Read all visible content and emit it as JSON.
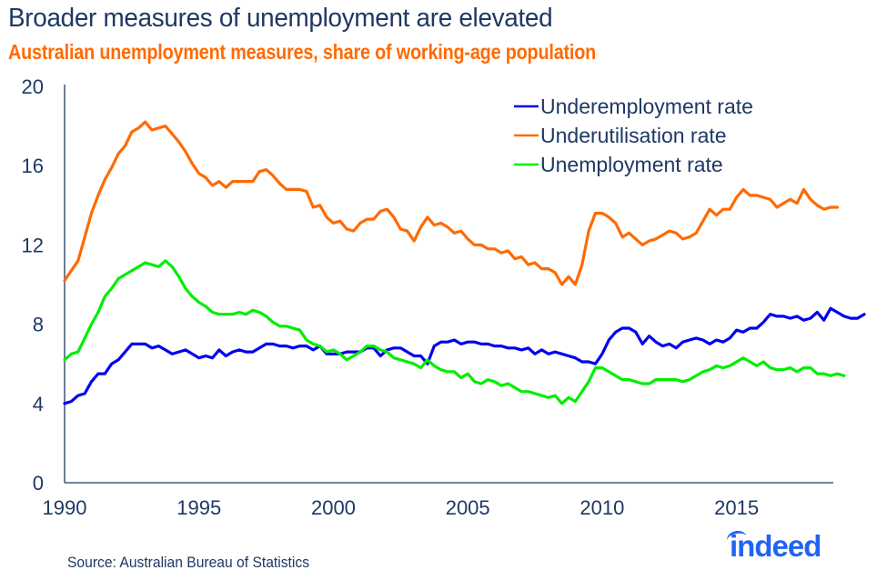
{
  "header": {
    "title": "Broader measures of unemployment are elevated",
    "subtitle": "Australian unemployment measures, share of working-age population"
  },
  "footer": {
    "source": "Source: Australian Bureau of Statistics",
    "logo_text": "indeed"
  },
  "colors": {
    "title": "#1f3864",
    "subtitle": "#ff6a00",
    "underemployment": "#0000ee",
    "underutilisation": "#ff6a00",
    "unemployment": "#00ee00",
    "axis": "#1f3864",
    "logo": "#2164f3"
  },
  "chart_data": {
    "type": "line",
    "title": "Broader measures of unemployment are elevated",
    "subtitle": "Australian unemployment measures, share of working-age population",
    "xlabel": "",
    "ylabel": "",
    "xlim": [
      1990,
      2018.6
    ],
    "ylim": [
      0,
      20
    ],
    "x_ticks": [
      1990,
      1995,
      2000,
      2005,
      2010,
      2015
    ],
    "y_ticks": [
      0,
      4,
      8,
      12,
      16,
      20
    ],
    "x_tick_labels": [
      "1990",
      "1995",
      "2000",
      "2005",
      "2010",
      "2015"
    ],
    "y_tick_labels": [
      "0",
      "4",
      "8",
      "12",
      "16",
      "20"
    ],
    "grid": false,
    "legend_position": "top-right",
    "x_start": 1990,
    "x_step": 0.25,
    "series": [
      {
        "name": "Underemployment rate",
        "color": "#0000ee",
        "values": [
          4.0,
          4.1,
          4.4,
          4.5,
          5.1,
          5.5,
          5.5,
          6.0,
          6.2,
          6.6,
          7.0,
          7.0,
          7.0,
          6.8,
          6.9,
          6.7,
          6.5,
          6.6,
          6.7,
          6.5,
          6.3,
          6.4,
          6.3,
          6.7,
          6.4,
          6.6,
          6.7,
          6.6,
          6.6,
          6.8,
          7.0,
          7.0,
          6.9,
          6.9,
          6.8,
          6.9,
          6.9,
          6.7,
          6.9,
          6.5,
          6.5,
          6.5,
          6.6,
          6.6,
          6.6,
          6.8,
          6.8,
          6.4,
          6.7,
          6.8,
          6.8,
          6.6,
          6.4,
          6.4,
          6.0,
          6.9,
          7.1,
          7.1,
          7.2,
          7.0,
          7.1,
          7.1,
          7.0,
          7.0,
          6.9,
          6.9,
          6.8,
          6.8,
          6.7,
          6.8,
          6.5,
          6.7,
          6.5,
          6.6,
          6.5,
          6.4,
          6.3,
          6.1,
          6.1,
          6.0,
          6.5,
          7.2,
          7.6,
          7.8,
          7.8,
          7.6,
          7.0,
          7.4,
          7.1,
          6.9,
          7.0,
          6.8,
          7.1,
          7.2,
          7.3,
          7.2,
          7.0,
          7.2,
          7.1,
          7.3,
          7.7,
          7.6,
          7.8,
          7.8,
          8.1,
          8.5,
          8.4,
          8.4,
          8.3,
          8.4,
          8.2,
          8.3,
          8.6,
          8.2,
          8.8,
          8.6,
          8.4,
          8.3,
          8.3,
          8.5
        ]
      },
      {
        "name": "Underutilisation rate",
        "color": "#ff6a00",
        "values": [
          10.2,
          10.7,
          11.2,
          12.4,
          13.6,
          14.5,
          15.3,
          15.9,
          16.6,
          17.0,
          17.7,
          17.9,
          18.2,
          17.8,
          17.9,
          18.0,
          17.6,
          17.2,
          16.7,
          16.1,
          15.6,
          15.4,
          15.0,
          15.2,
          14.9,
          15.2,
          15.2,
          15.2,
          15.2,
          15.7,
          15.8,
          15.5,
          15.1,
          14.8,
          14.8,
          14.8,
          14.7,
          13.9,
          14.0,
          13.4,
          13.1,
          13.2,
          12.8,
          12.7,
          13.1,
          13.3,
          13.3,
          13.7,
          13.8,
          13.4,
          12.8,
          12.7,
          12.2,
          12.9,
          13.4,
          13.0,
          13.1,
          12.9,
          12.6,
          12.7,
          12.3,
          12.0,
          12.0,
          11.8,
          11.8,
          11.6,
          11.7,
          11.3,
          11.4,
          11.0,
          11.1,
          10.8,
          10.8,
          10.6,
          10.0,
          10.4,
          10.0,
          11.0,
          12.7,
          13.6,
          13.6,
          13.4,
          13.1,
          12.4,
          12.6,
          12.3,
          12.0,
          12.2,
          12.3,
          12.5,
          12.7,
          12.6,
          12.3,
          12.4,
          12.6,
          13.2,
          13.8,
          13.5,
          13.8,
          13.8,
          14.4,
          14.8,
          14.5,
          14.5,
          14.4,
          14.3,
          13.9,
          14.1,
          14.3,
          14.1,
          14.8,
          14.3,
          14.0,
          13.8,
          13.9,
          13.9
        ]
      },
      {
        "name": "Unemployment rate",
        "color": "#00ee00",
        "values": [
          6.2,
          6.5,
          6.6,
          7.3,
          8.0,
          8.6,
          9.4,
          9.8,
          10.3,
          10.5,
          10.7,
          10.9,
          11.1,
          11.0,
          10.9,
          11.2,
          10.9,
          10.4,
          9.8,
          9.4,
          9.1,
          8.9,
          8.6,
          8.5,
          8.5,
          8.5,
          8.6,
          8.5,
          8.7,
          8.6,
          8.4,
          8.1,
          7.9,
          7.9,
          7.8,
          7.7,
          7.2,
          7.0,
          6.9,
          6.6,
          6.7,
          6.5,
          6.2,
          6.4,
          6.6,
          6.9,
          6.9,
          6.7,
          6.6,
          6.3,
          6.2,
          6.1,
          6.0,
          5.8,
          6.2,
          5.9,
          5.7,
          5.6,
          5.6,
          5.3,
          5.5,
          5.1,
          5.0,
          5.2,
          5.1,
          4.9,
          5.0,
          4.8,
          4.6,
          4.6,
          4.5,
          4.4,
          4.3,
          4.4,
          4.0,
          4.3,
          4.1,
          4.6,
          5.1,
          5.8,
          5.8,
          5.6,
          5.4,
          5.2,
          5.2,
          5.1,
          5.0,
          5.0,
          5.2,
          5.2,
          5.2,
          5.2,
          5.1,
          5.2,
          5.4,
          5.6,
          5.7,
          5.9,
          5.8,
          5.9,
          6.1,
          6.3,
          6.1,
          5.9,
          6.1,
          5.8,
          5.7,
          5.7,
          5.8,
          5.6,
          5.8,
          5.8,
          5.5,
          5.5,
          5.4,
          5.5,
          5.4
        ]
      }
    ]
  }
}
